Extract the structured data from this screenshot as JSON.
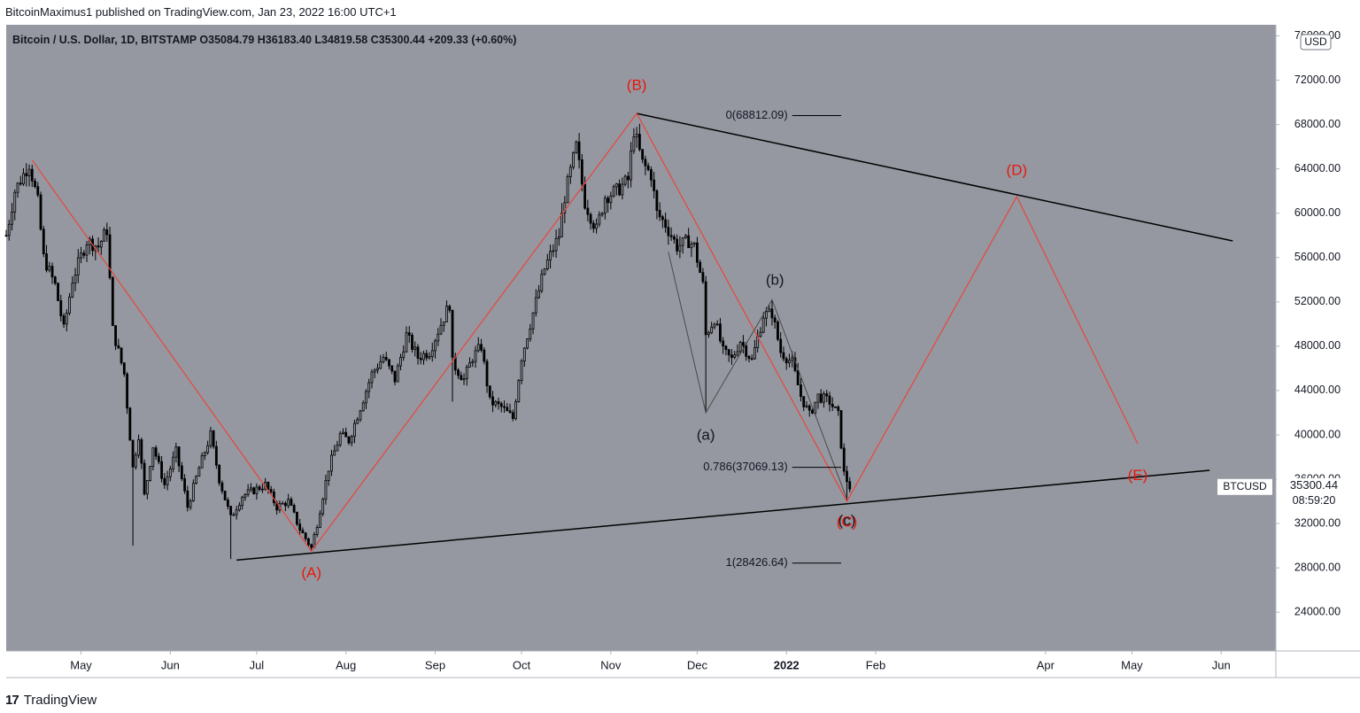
{
  "header": {
    "text": "BitcoinMaximus1 published on TradingView.com, Jan 23, 2022 16:00 UTC+1"
  },
  "footer": {
    "brand": "TradingView",
    "logo_glyph": "17"
  },
  "colors": {
    "plot_bg": "#9598a1",
    "candle": "#000000",
    "red_wave": "#e8453c",
    "red_label": "#e8170b",
    "trendline": "#000000",
    "grey_path": "#4a4a4a",
    "axis_bg": "#ffffff"
  },
  "chart_data": {
    "type": "candlestick",
    "symbol_line": {
      "name": "Bitcoin / U.S. Dollar, 1D, BITSTAMP",
      "open_label": "O",
      "open": "35084.79",
      "high_label": "H",
      "high": "36183.40",
      "low_label": "L",
      "low": "34819.58",
      "close_label": "C",
      "close": "35300.44",
      "change": "+209.33 (+0.60%)"
    },
    "currency": "USD",
    "y_axis": {
      "ticks": [
        76000,
        72000,
        68000,
        64000,
        60000,
        56000,
        52000,
        48000,
        44000,
        40000,
        36000,
        32000,
        28000,
        24000
      ],
      "tick_labels": [
        "76000.00",
        "72000.00",
        "68000.00",
        "64000.00",
        "60000.00",
        "56000.00",
        "52000.00",
        "48000.00",
        "44000.00",
        "40000.00",
        "36000.00",
        "32000.00",
        "28000.00",
        "24000.00"
      ],
      "range": [
        20500,
        77000
      ]
    },
    "x_axis": {
      "range": [
        "2021-04-05",
        "2022-06-20"
      ],
      "ticks": [
        {
          "date": "2021-05-01",
          "label": "May",
          "bold": false
        },
        {
          "date": "2021-06-01",
          "label": "Jun",
          "bold": false
        },
        {
          "date": "2021-07-01",
          "label": "Jul",
          "bold": false
        },
        {
          "date": "2021-08-01",
          "label": "Aug",
          "bold": false
        },
        {
          "date": "2021-09-01",
          "label": "Sep",
          "bold": false
        },
        {
          "date": "2021-10-01",
          "label": "Oct",
          "bold": false
        },
        {
          "date": "2021-11-01",
          "label": "Nov",
          "bold": false
        },
        {
          "date": "2021-12-01",
          "label": "Dec",
          "bold": false
        },
        {
          "date": "2022-01-01",
          "label": "2022",
          "bold": true
        },
        {
          "date": "2022-02-01",
          "label": "Feb",
          "bold": false
        },
        {
          "date": "2022-04-01",
          "label": "Apr",
          "bold": false
        },
        {
          "date": "2022-05-01",
          "label": "May",
          "bold": false
        },
        {
          "date": "2022-06-01",
          "label": "Jun",
          "bold": false
        }
      ]
    },
    "price_path": [
      [
        "2021-04-05",
        58000
      ],
      [
        "2021-04-08",
        62000
      ],
      [
        "2021-04-13",
        64500
      ],
      [
        "2021-04-16",
        61000
      ],
      [
        "2021-04-18",
        56000
      ],
      [
        "2021-04-22",
        53500
      ],
      [
        "2021-04-25",
        49500
      ],
      [
        "2021-04-28",
        54000
      ],
      [
        "2021-05-03",
        57500
      ],
      [
        "2021-05-07",
        57000
      ],
      [
        "2021-05-10",
        58500
      ],
      [
        "2021-05-12",
        49500
      ],
      [
        "2021-05-16",
        45500
      ],
      [
        "2021-05-19",
        37000
      ],
      [
        "2021-05-21",
        40000
      ],
      [
        "2021-05-23",
        34500
      ],
      [
        "2021-05-26",
        39000
      ],
      [
        "2021-05-30",
        35500
      ],
      [
        "2021-06-03",
        38500
      ],
      [
        "2021-06-07",
        33500
      ],
      [
        "2021-06-11",
        37000
      ],
      [
        "2021-06-15",
        40000
      ],
      [
        "2021-06-18",
        36000
      ],
      [
        "2021-06-22",
        32500
      ],
      [
        "2021-06-26",
        34500
      ],
      [
        "2021-06-30",
        35000
      ],
      [
        "2021-07-04",
        35500
      ],
      [
        "2021-07-08",
        33500
      ],
      [
        "2021-07-12",
        34000
      ],
      [
        "2021-07-16",
        31500
      ],
      [
        "2021-07-20",
        29800
      ],
      [
        "2021-07-22",
        32000
      ],
      [
        "2021-07-26",
        37000
      ],
      [
        "2021-07-30",
        40000
      ],
      [
        "2021-08-02",
        39500
      ],
      [
        "2021-08-06",
        42500
      ],
      [
        "2021-08-10",
        45500
      ],
      [
        "2021-08-14",
        47000
      ],
      [
        "2021-08-18",
        45000
      ],
      [
        "2021-08-22",
        49000
      ],
      [
        "2021-08-26",
        47000
      ],
      [
        "2021-08-30",
        47500
      ],
      [
        "2021-09-03",
        50000
      ],
      [
        "2021-09-06",
        51800
      ],
      [
        "2021-09-07",
        46500
      ],
      [
        "2021-09-11",
        45000
      ],
      [
        "2021-09-14",
        47000
      ],
      [
        "2021-09-17",
        48000
      ],
      [
        "2021-09-20",
        43000
      ],
      [
        "2021-09-24",
        42500
      ],
      [
        "2021-09-28",
        41500
      ],
      [
        "2021-10-01",
        47000
      ],
      [
        "2021-10-05",
        51000
      ],
      [
        "2021-10-09",
        55000
      ],
      [
        "2021-10-14",
        58000
      ],
      [
        "2021-10-16",
        61500
      ],
      [
        "2021-10-20",
        66000
      ],
      [
        "2021-10-23",
        61000
      ],
      [
        "2021-10-27",
        58500
      ],
      [
        "2021-10-30",
        61500
      ],
      [
        "2021-11-03",
        62000
      ],
      [
        "2021-11-07",
        63000
      ],
      [
        "2021-11-09",
        67500
      ],
      [
        "2021-11-12",
        64500
      ],
      [
        "2021-11-15",
        63500
      ],
      [
        "2021-11-17",
        60000
      ],
      [
        "2021-11-20",
        59000
      ],
      [
        "2021-11-24",
        57000
      ],
      [
        "2021-11-28",
        57500
      ],
      [
        "2021-11-30",
        57000
      ],
      [
        "2021-12-03",
        53500
      ],
      [
        "2021-12-04",
        49000
      ],
      [
        "2021-12-07",
        50500
      ],
      [
        "2021-12-10",
        47500
      ],
      [
        "2021-12-13",
        46800
      ],
      [
        "2021-12-16",
        48500
      ],
      [
        "2021-12-20",
        46700
      ],
      [
        "2021-12-24",
        50800
      ],
      [
        "2021-12-27",
        51000
      ],
      [
        "2021-12-30",
        47500
      ],
      [
        "2022-01-03",
        46500
      ],
      [
        "2022-01-06",
        43500
      ],
      [
        "2022-01-09",
        41800
      ],
      [
        "2022-01-12",
        43500
      ],
      [
        "2022-01-16",
        43000
      ],
      [
        "2022-01-19",
        41800
      ],
      [
        "2022-01-21",
        36500
      ],
      [
        "2022-01-23",
        35300
      ]
    ],
    "candle_extra_wick": [
      [
        "2021-05-19",
        30000
      ],
      [
        "2021-06-22",
        28800
      ],
      [
        "2021-09-07",
        43000
      ],
      [
        "2021-12-04",
        42000
      ],
      [
        "2022-01-22",
        34000
      ]
    ],
    "red_wave_path": [
      [
        "2021-04-14",
        64800
      ],
      [
        "2021-07-20",
        29500
      ],
      [
        "2021-11-10",
        69000
      ],
      [
        "2022-01-22",
        34000
      ],
      [
        "2022-03-22",
        61500
      ],
      [
        "2022-05-03",
        39200
      ]
    ],
    "wave_labels": [
      {
        "text": "(A)",
        "date": "2021-07-20",
        "price": 27500,
        "color": "red"
      },
      {
        "text": "(B)",
        "date": "2021-11-10",
        "price": 71500,
        "color": "red"
      },
      {
        "text": "(C)",
        "date": "2022-01-22",
        "price": 32100,
        "color": "red"
      },
      {
        "text": "(D)",
        "date": "2022-03-22",
        "price": 63800,
        "color": "red"
      },
      {
        "text": "(E)",
        "date": "2022-05-03",
        "price": 36300,
        "color": "red"
      },
      {
        "text": "(a)",
        "date": "2021-12-04",
        "price": 39900,
        "color": "black"
      },
      {
        "text": "(b)",
        "date": "2021-12-28",
        "price": 53900,
        "color": "black"
      },
      {
        "text": "(c)",
        "date": "2022-01-22",
        "price": 32200,
        "color": "black"
      }
    ],
    "grey_subwave_path": [
      [
        "2021-11-21",
        56500
      ],
      [
        "2021-12-04",
        42000
      ],
      [
        "2021-12-27",
        52200
      ],
      [
        "2022-01-22",
        34200
      ]
    ],
    "trendlines": [
      {
        "from": [
          "2021-11-10",
          69000
        ],
        "to": [
          "2022-06-05",
          57500
        ]
      },
      {
        "from": [
          "2021-06-24",
          28700
        ],
        "to": [
          "2022-05-28",
          36800
        ]
      }
    ],
    "fib_levels": [
      {
        "label": "0(68812.09)",
        "price": 68812.09
      },
      {
        "label": "0.786(37069.13)",
        "price": 37069.13
      },
      {
        "label": "1(28426.64)",
        "price": 28426.64
      }
    ],
    "fib_line_dates": [
      "2022-01-03",
      "2022-01-20"
    ],
    "price_badge": {
      "symbol": "BTCUSD",
      "price": "35300.44",
      "countdown": "08:59:20"
    }
  }
}
